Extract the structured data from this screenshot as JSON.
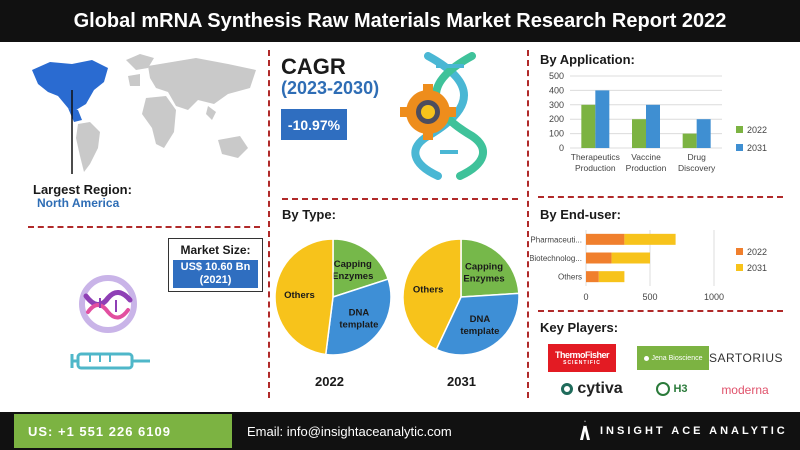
{
  "header": {
    "title": "Global mRNA Synthesis Raw Materials Market Research Report 2022"
  },
  "region": {
    "label": "Largest Region:",
    "value": "North America"
  },
  "market_size": {
    "label": "Market Size:",
    "value_line1": "US$ 10.60 Bn",
    "value_line2": "(2021)"
  },
  "cagr": {
    "title": "CAGR",
    "period": "(2023-2030)",
    "value": "-10.97%"
  },
  "by_type": {
    "title": "By Type:"
  },
  "by_application": {
    "title": "By Application:"
  },
  "by_enduser": {
    "title": "By End-user:"
  },
  "key_players": {
    "title": "Key Players:",
    "logos": {
      "thermo_line1": "ThermoFisher",
      "thermo_line2": "SCIENTIFIC",
      "jena": "Jena Bioscience",
      "sartorius": "SARTORIUS",
      "cytiva": "cytiva",
      "h3": "H3",
      "moderna": "moderna"
    }
  },
  "footer": {
    "phone": "US: +1 551 226 6109",
    "email": "Email: info@insightacеanalytic.com",
    "brand": "INSIGHT ACE ANALYTIC"
  },
  "colors": {
    "c2022": "#7cb342",
    "c2031": "#3f8fd2",
    "cOthers": "#f7c31b",
    "cCapping": "#76b84a",
    "cDNA": "#3e8fd6",
    "end2022": "#f07f2d",
    "end2031": "#f7c31b",
    "accent": "#2f6ec0",
    "divider": "#b02a2a"
  },
  "chart_data": [
    {
      "type": "bar",
      "title": "By Application:",
      "categories": [
        "Therapeutics Production",
        "Vaccine Production",
        "Drug Discovery"
      ],
      "series": [
        {
          "name": "2022",
          "values": [
            300,
            200,
            100
          ]
        },
        {
          "name": "2031",
          "values": [
            400,
            300,
            200
          ]
        }
      ],
      "ylim": [
        0,
        500
      ],
      "yticks": [
        0,
        100,
        200,
        300,
        400,
        500
      ],
      "legend": "right",
      "grid": true
    },
    {
      "type": "bar",
      "orientation": "horizontal",
      "stacked": true,
      "title": "By End-user:",
      "categories": [
        "Pharmaceuti...",
        "Biotechnolog...",
        "Others"
      ],
      "series": [
        {
          "name": "2022",
          "values": [
            300,
            200,
            100
          ]
        },
        {
          "name": "2031",
          "values": [
            400,
            300,
            200
          ]
        }
      ],
      "xlim": [
        0,
        1000
      ],
      "xticks": [
        0,
        500,
        1000
      ],
      "legend": "right",
      "grid": true
    },
    {
      "type": "pie",
      "label": "2022",
      "slices": [
        {
          "name": "Capping Enzymes",
          "value": 20
        },
        {
          "name": "DNA template",
          "value": 32
        },
        {
          "name": "Others",
          "value": 48
        }
      ]
    },
    {
      "type": "pie",
      "label": "2031",
      "slices": [
        {
          "name": "Capping Enzymes",
          "value": 24
        },
        {
          "name": "DNA template",
          "value": 33
        },
        {
          "name": "Others",
          "value": 43
        }
      ]
    }
  ]
}
